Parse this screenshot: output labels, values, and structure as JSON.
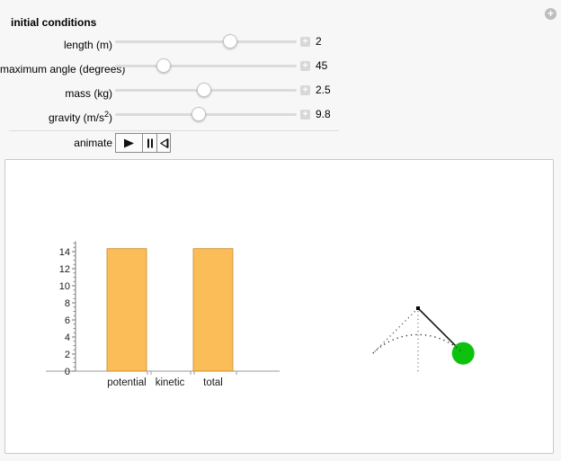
{
  "page": {
    "bg": "#F7F7F7",
    "panel_border": "#C9C9C9"
  },
  "header": {
    "title": "initial conditions"
  },
  "icons": {
    "plus_stepper": "+",
    "plus_menu": "+"
  },
  "controls": {
    "sliders": [
      {
        "id": "length",
        "label_prefix": "length (m)",
        "label_sup": "",
        "label_suffix": "",
        "value": "2",
        "fraction": 0.635
      },
      {
        "id": "maximum-angle",
        "label_prefix": "maximum angle (degrees)",
        "label_sup": "",
        "label_suffix": "",
        "value": "45",
        "fraction": 0.27
      },
      {
        "id": "mass",
        "label_prefix": "mass (kg)",
        "label_sup": "",
        "label_suffix": "",
        "value": "2.5",
        "fraction": 0.49
      },
      {
        "id": "gravity",
        "label_prefix": "gravity (m/s",
        "label_sup": "2",
        "label_suffix": ")",
        "value": "9.8",
        "fraction": 0.465
      }
    ],
    "animate": {
      "label": "animate",
      "buttons": [
        "play",
        "pause",
        "reset"
      ]
    }
  },
  "chart_data": {
    "type": "bar",
    "categories": [
      "potential",
      "kinetic",
      "total"
    ],
    "values": [
      14.35,
      0,
      14.35
    ],
    "title": "",
    "xlabel": "",
    "ylabel": "",
    "ylim": [
      0,
      15
    ],
    "ytick_step": 2,
    "yminor_step": 0.5,
    "grid": false,
    "legend": "none",
    "bar_color": "#FBBD57",
    "bar_edge_color": "#C9882F",
    "axis_color": "#777777",
    "tick_label_color": "#1A1A1A"
  },
  "pendulum": {
    "max_angle_degrees": 45,
    "current_angle_degrees": 45,
    "bob_color": "#0DC20D",
    "rod_color": "#1A1A1A",
    "pivot_color": "#000000",
    "guide_color": "#555555",
    "guide_style": "dotted"
  }
}
